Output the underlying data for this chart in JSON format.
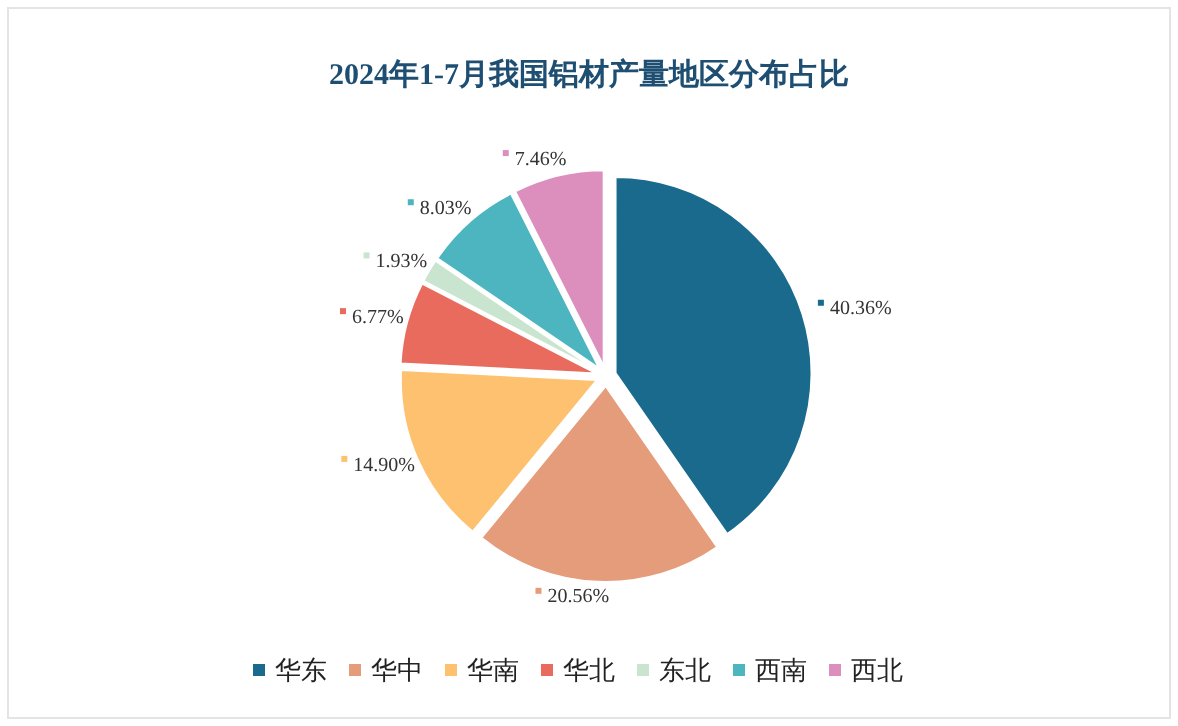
{
  "chart_data": {
    "type": "pie",
    "title": "2024年1-7月我国铝材产量地区分布占比",
    "categories": [
      "华东",
      "华中",
      "华南",
      "华北",
      "东北",
      "西南",
      "西北"
    ],
    "values": [
      40.36,
      20.56,
      14.9,
      6.77,
      1.93,
      8.03,
      7.46
    ],
    "colors": [
      "#1a6a8e",
      "#e59c7a",
      "#fdc16f",
      "#e86b5e",
      "#c9e5cf",
      "#4db5c0",
      "#dc8fbd"
    ],
    "value_labels": [
      "40.36%",
      "20.56%",
      "14.90%",
      "6.77%",
      "1.93%",
      "8.03%",
      "7.46%"
    ],
    "legend": "bottom"
  }
}
